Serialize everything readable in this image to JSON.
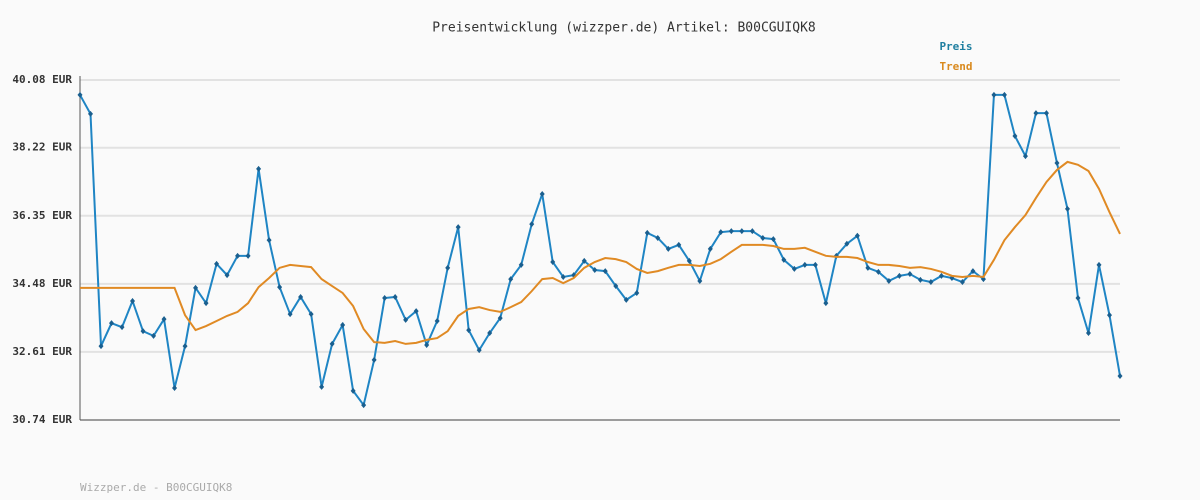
{
  "chart_data": {
    "type": "line",
    "title": "Preisentwicklung (wizzper.de) Artikel: B00CGUIQK8",
    "footer": "Wizzper.de - B00CGUIQK8",
    "categories": [
      null,
      null,
      null,
      null,
      null,
      null,
      null,
      null,
      null,
      null,
      null,
      null,
      null,
      null,
      null,
      null,
      null,
      null,
      null,
      null,
      null,
      null,
      null,
      null,
      null,
      null,
      null,
      null,
      null,
      null,
      null,
      null,
      null,
      null,
      null,
      null,
      null,
      null,
      null,
      null,
      null,
      null,
      null,
      null,
      null,
      null,
      null,
      null,
      null,
      null,
      null,
      null,
      null,
      null,
      null,
      null,
      null,
      null,
      null,
      null,
      null,
      null,
      null,
      null,
      null,
      null,
      null,
      null,
      null,
      null,
      null,
      null,
      null,
      null,
      null,
      null,
      null,
      null,
      null,
      null,
      null,
      null,
      null,
      null,
      null,
      null,
      null,
      null,
      null,
      null,
      null,
      null,
      null,
      null,
      null,
      null,
      null,
      null,
      null,
      null
    ],
    "series": [
      {
        "name": "Preis",
        "color": "#1f85c4",
        "label_color": "#1f7fa0",
        "markers": true,
        "values": [
          39.67,
          39.15,
          32.77,
          33.4,
          33.29,
          34.01,
          33.18,
          33.05,
          33.51,
          31.62,
          32.77,
          34.37,
          33.95,
          35.03,
          34.72,
          35.25,
          35.25,
          37.64,
          35.68,
          34.39,
          33.65,
          34.12,
          33.65,
          31.65,
          32.83,
          33.35,
          31.54,
          31.15,
          32.39,
          34.09,
          34.12,
          33.49,
          33.73,
          32.8,
          33.46,
          34.92,
          36.04,
          33.21,
          32.66,
          33.13,
          33.54,
          34.61,
          35.0,
          36.12,
          36.95,
          35.08,
          34.67,
          34.72,
          35.11,
          34.86,
          34.83,
          34.42,
          34.04,
          34.23,
          35.88,
          35.74,
          35.44,
          35.55,
          35.11,
          34.56,
          35.44,
          35.9,
          35.93,
          35.93,
          35.93,
          35.74,
          35.71,
          35.14,
          34.89,
          35.0,
          35.0,
          33.95,
          35.25,
          35.58,
          35.8,
          34.92,
          34.81,
          34.56,
          34.7,
          34.75,
          34.59,
          34.53,
          34.7,
          34.64,
          34.53,
          34.83,
          34.61,
          39.67,
          39.67,
          38.54,
          37.99,
          39.17,
          39.17,
          37.8,
          36.54,
          34.09,
          33.13,
          35.0,
          33.62,
          31.95
        ]
      },
      {
        "name": "Trend",
        "color": "#e08a24",
        "label_color": "#d98a1e",
        "markers": false,
        "values": [
          34.37,
          34.37,
          34.37,
          34.37,
          34.37,
          34.37,
          34.37,
          34.37,
          34.37,
          34.37,
          33.62,
          33.21,
          33.32,
          33.46,
          33.6,
          33.71,
          33.95,
          34.39,
          34.64,
          34.92,
          35.0,
          34.97,
          34.94,
          34.61,
          34.42,
          34.23,
          33.87,
          33.24,
          32.88,
          32.86,
          32.91,
          32.83,
          32.86,
          32.94,
          32.99,
          33.18,
          33.6,
          33.79,
          33.84,
          33.76,
          33.71,
          33.84,
          33.98,
          34.28,
          34.61,
          34.64,
          34.5,
          34.64,
          34.92,
          35.08,
          35.19,
          35.16,
          35.08,
          34.89,
          34.78,
          34.83,
          34.92,
          35.0,
          35.0,
          34.97,
          35.03,
          35.16,
          35.36,
          35.55,
          35.55,
          35.55,
          35.52,
          35.44,
          35.44,
          35.47,
          35.36,
          35.25,
          35.22,
          35.22,
          35.19,
          35.08,
          35.0,
          35.0,
          34.97,
          34.92,
          34.94,
          34.89,
          34.81,
          34.7,
          34.67,
          34.7,
          34.67,
          35.14,
          35.68,
          36.04,
          36.37,
          36.84,
          37.28,
          37.61,
          37.83,
          37.75,
          37.58,
          37.09,
          36.45,
          35.85
        ]
      }
    ],
    "ylim": [
      30.74,
      40.08
    ],
    "yticks": [
      {
        "value": 30.74,
        "label": "30.74 EUR"
      },
      {
        "value": 32.61,
        "label": "32.61 EUR"
      },
      {
        "value": 34.48,
        "label": "34.48 EUR"
      },
      {
        "value": 36.35,
        "label": "36.35 EUR"
      },
      {
        "value": 38.22,
        "label": "38.22 EUR"
      },
      {
        "value": 40.08,
        "label": "40.08 EUR"
      }
    ],
    "grid": true
  }
}
